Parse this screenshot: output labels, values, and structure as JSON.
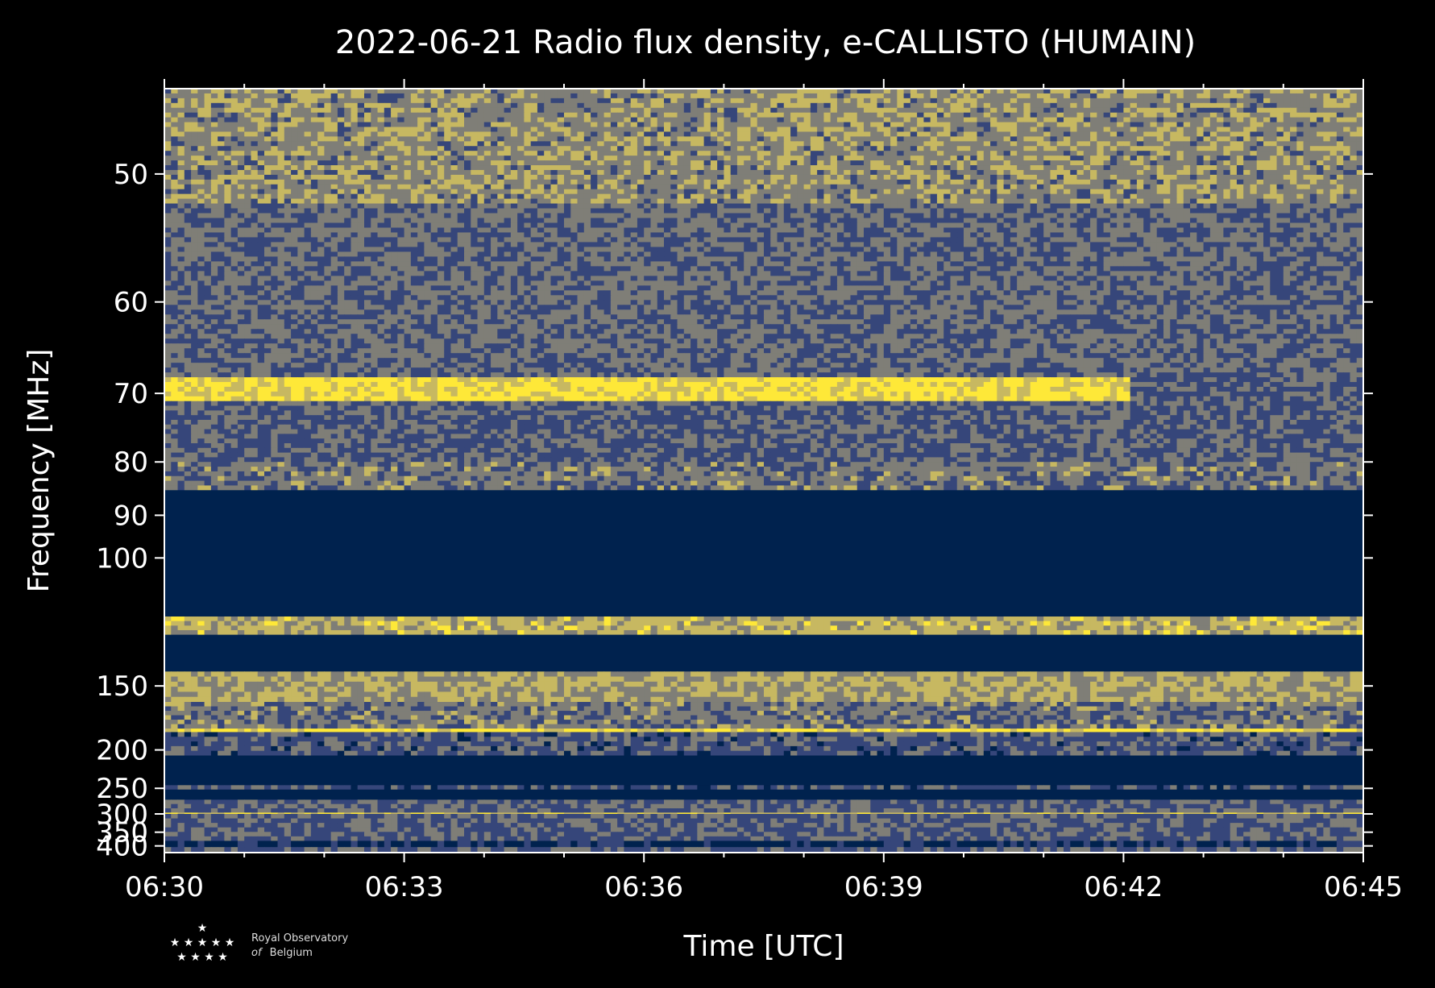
{
  "chart_data": {
    "type": "heatmap",
    "title": "2022-06-21 Radio flux density, e-CALLISTO (HUMAIN)",
    "xlabel": "Time [UTC]",
    "ylabel": "Frequency [MHz]",
    "x_ticks": [
      "06:30",
      "06:33",
      "06:36",
      "06:39",
      "06:42",
      "06:45"
    ],
    "x_range_minutes": [
      0,
      15
    ],
    "y_ticks": [
      50,
      60,
      70,
      80,
      90,
      100,
      150,
      200,
      250,
      300,
      350,
      400
    ],
    "y_scale": "reciprocal",
    "y_range": [
      45,
      430
    ],
    "colormap": [
      "#00224e",
      "#36467a",
      "#7f7e77",
      "#c7b861",
      "#fee838"
    ],
    "bands": [
      {
        "f": [
          45,
          52
        ],
        "level": 0.55
      },
      {
        "f": [
          52,
          68
        ],
        "level": 0.4
      },
      {
        "f": [
          68,
          71
        ],
        "level": 0.95,
        "end_minute": 12.1
      },
      {
        "f": [
          71,
          80
        ],
        "level": 0.35
      },
      {
        "f": [
          80,
          85
        ],
        "level": 0.45
      },
      {
        "f": [
          85,
          118
        ],
        "level": 0.0
      },
      {
        "f": [
          118,
          125
        ],
        "level": 0.7
      },
      {
        "f": [
          125,
          142
        ],
        "level": 0.0
      },
      {
        "f": [
          142,
          160
        ],
        "level": 0.65
      },
      {
        "f": [
          160,
          180
        ],
        "level": 0.45
      },
      {
        "f": [
          180,
          183
        ],
        "level": 0.95
      },
      {
        "f": [
          183,
          206
        ],
        "level": 0.3
      },
      {
        "f": [
          206,
          245
        ],
        "level": 0.0
      },
      {
        "f": [
          245,
          252
        ],
        "level": 0.3
      },
      {
        "f": [
          252,
          270
        ],
        "level": 0.0
      },
      {
        "f": [
          270,
          297
        ],
        "level": 0.35
      },
      {
        "f": [
          297,
          300
        ],
        "level": 0.85
      },
      {
        "f": [
          300,
          380
        ],
        "level": 0.35
      },
      {
        "f": [
          380,
          405
        ],
        "level": 0.05
      },
      {
        "f": [
          405,
          430
        ],
        "level": 0.35
      }
    ]
  },
  "logo": {
    "line1": "Royal Observatory",
    "line2_italic": "of",
    "line2": "Belgium"
  }
}
